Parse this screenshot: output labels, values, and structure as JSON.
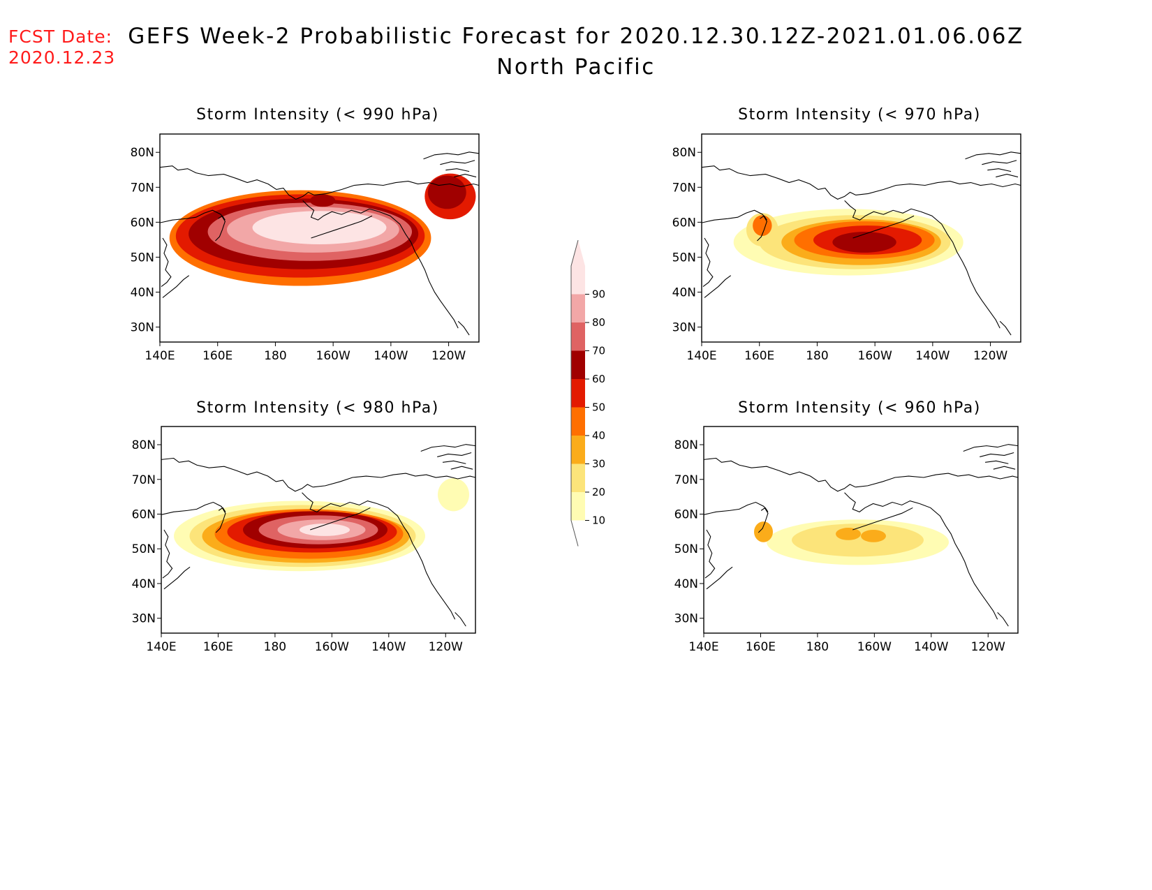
{
  "fcst_date": {
    "label": "FCST Date:",
    "value": "2020.12.23"
  },
  "title": {
    "line1": "GEFS Week-2 Probabilistic Forecast for 2020.12.30.12Z-2021.01.06.06Z",
    "line2": "North Pacific"
  },
  "panels": [
    {
      "id": "p990",
      "title": "Storm Intensity (< 990 hPa)",
      "threshold_hpa": 990
    },
    {
      "id": "p970",
      "title": "Storm Intensity (< 970 hPa)",
      "threshold_hpa": 970
    },
    {
      "id": "p980",
      "title": "Storm Intensity (< 980 hPa)",
      "threshold_hpa": 980
    },
    {
      "id": "p960",
      "title": "Storm Intensity (< 960 hPa)",
      "threshold_hpa": 960
    }
  ],
  "axes": {
    "lat_ticks": [
      "80N",
      "70N",
      "60N",
      "50N",
      "40N",
      "30N"
    ],
    "lon_ticks": [
      "140E",
      "160E",
      "180",
      "160W",
      "140W",
      "120W"
    ]
  },
  "colorbar": {
    "levels": [
      "10",
      "20",
      "30",
      "40",
      "50",
      "60",
      "70",
      "80",
      "90"
    ],
    "colors": [
      "#fffcb3",
      "#fce47a",
      "#fbac1a",
      "#ff6f00",
      "#e31a00",
      "#a00000",
      "#df6363",
      "#f2a7a7",
      "#fde4e4"
    ]
  }
}
